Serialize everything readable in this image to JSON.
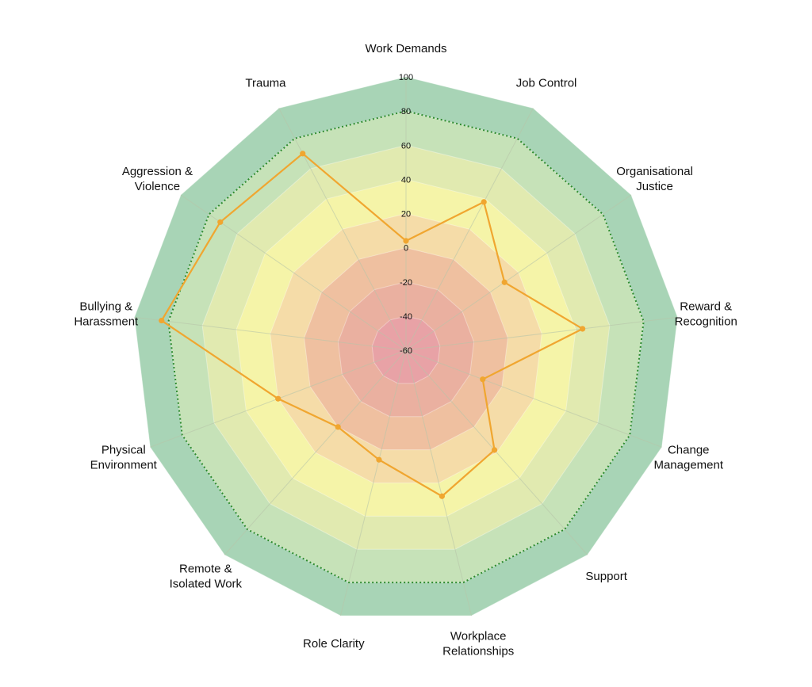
{
  "chart_data": {
    "type": "radar",
    "title": "",
    "categories": [
      [
        "Work Demands"
      ],
      [
        "Job Control"
      ],
      [
        "Organisational",
        "Justice"
      ],
      [
        "Reward &",
        "Recognition"
      ],
      [
        "Change",
        "Management"
      ],
      [
        "Support"
      ],
      [
        "Workplace",
        "Relationships"
      ],
      [
        "Role Clarity"
      ],
      [
        "Remote &",
        "Isolated Work"
      ],
      [
        "Physical",
        "Environment"
      ],
      [
        "Bullying &",
        "Harassment"
      ],
      [
        "Aggression &",
        "Violence"
      ],
      [
        "Trauma"
      ]
    ],
    "range": [
      -60,
      100
    ],
    "ticks": [
      100,
      80,
      60,
      40,
      20,
      0,
      -20,
      -40,
      -60
    ],
    "threshold": 80,
    "bands": [
      {
        "from": 80,
        "to": 100,
        "color": "#a8d4b6"
      },
      {
        "from": 60,
        "to": 80,
        "color": "#c6e2b8"
      },
      {
        "from": 40,
        "to": 60,
        "color": "#e1eab0"
      },
      {
        "from": 20,
        "to": 40,
        "color": "#f5f4a8"
      },
      {
        "from": 0,
        "to": 20,
        "color": "#f5dca8"
      },
      {
        "from": -20,
        "to": 0,
        "color": "#efc0a0"
      },
      {
        "from": -40,
        "to": -20,
        "color": "#eab0a0"
      },
      {
        "from": -60,
        "to": -40,
        "color": "#e8a2a6"
      }
    ],
    "series": [
      {
        "values": [
          4,
          38,
          10,
          44,
          -12,
          18,
          28,
          6,
          0,
          20,
          84,
          72,
          70
        ],
        "color": "#f0a630"
      }
    ],
    "threshold_color": "#2e8b2e",
    "spoke_color": "#b8c4a8"
  }
}
